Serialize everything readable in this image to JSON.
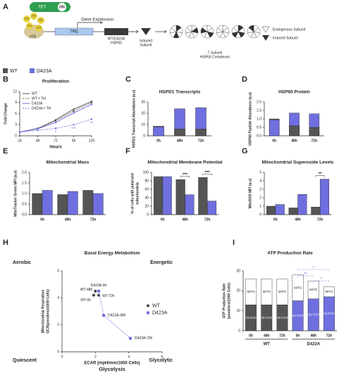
{
  "panel_a": {
    "label": "A",
    "tet": "TET",
    "switch": "ON",
    "rtta": "rtTA",
    "gene_expression": "Gene Expression",
    "tre": "TRE",
    "construct": [
      "WT/D423A",
      "HSP60"
    ],
    "induced": [
      "Induced",
      "Subunit"
    ],
    "complexes": [
      "7 Subunit",
      "HSP60 Complexes"
    ],
    "key": [
      ": Endogenous Subunit",
      ": Induced Subunit"
    ]
  },
  "legend": {
    "names": [
      "WT",
      "D423A"
    ],
    "colors": [
      "#555555",
      "#6f6fe0"
    ]
  },
  "chart_data": [
    {
      "panel": "B",
      "type": "line",
      "title": "Proliferation",
      "x": [
        24,
        48,
        72,
        96,
        120
      ],
      "xlim": [
        24,
        120
      ],
      "xticks": [
        24,
        48,
        72,
        96,
        120
      ],
      "ylim": [
        0,
        12
      ],
      "yticks": [
        0,
        3,
        6,
        9,
        12
      ],
      "xlabel": "Hours",
      "ylabel": "Fold Change",
      "legend": "upper left",
      "series": [
        {
          "name": "WT",
          "color": "#555555",
          "dashed": false,
          "values": [
            1,
            2,
            4.3,
            7.2,
            9.3
          ]
        },
        {
          "name": "WT + Tet",
          "color": "#555555",
          "dashed": true,
          "values": [
            1,
            2,
            4,
            6.7,
            9
          ]
        },
        {
          "name": "D423A",
          "color": "#6f6fe0",
          "dashed": false,
          "values": [
            1,
            1.9,
            3.6,
            6.2,
            8.5
          ]
        },
        {
          "name": "D423A + Tet",
          "color": "#6f6fe0",
          "dashed": true,
          "values": [
            1,
            1.5,
            2,
            3,
            4.5
          ]
        }
      ],
      "annotations": [
        null,
        null,
        "*",
        "***",
        "**"
      ]
    },
    {
      "panel": "C",
      "type": "bar",
      "overlay": true,
      "title": "HSPD1 Transcripts",
      "categories": [
        "0h",
        "48h",
        "72h"
      ],
      "ylim": [
        0,
        30
      ],
      "yticks": [
        0,
        10,
        20,
        30
      ],
      "ylabel": [
        "HSPD1 Transcript Abundance (a.u)"
      ],
      "series": [
        {
          "name": "WT",
          "color": "#555555",
          "values": [
            8.5,
            6,
            6
          ]
        },
        {
          "name": "D423A",
          "color": "#6f6fe0",
          "values": [
            8,
            24,
            25
          ]
        }
      ]
    },
    {
      "panel": "D",
      "type": "bar",
      "overlay": true,
      "title": "HSP60 Protein",
      "categories": [
        "0h",
        "48h",
        "72h"
      ],
      "ylim": [
        0,
        2
      ],
      "yticks": [
        {
          "value": 0,
          "label": "0.0"
        },
        0.5,
        {
          "value": 1,
          "label": "1.0"
        },
        1.5,
        {
          "value": 2,
          "label": "2.0"
        }
      ],
      "ylabel": [
        "HSP60 Peptide Abundance (a.u)"
      ],
      "series": [
        {
          "name": "WT",
          "color": "#555555",
          "values": [
            1.0,
            0.6,
            0.5
          ]
        },
        {
          "name": "D423A",
          "color": "#6f6fe0",
          "values": [
            0.95,
            1.35,
            1.3
          ]
        }
      ]
    },
    {
      "panel": "E",
      "type": "bar",
      "overlay": false,
      "title": "Mitochondrial Mass",
      "categories": [
        "0h",
        "48h",
        "72h"
      ],
      "ylim": [
        0,
        2
      ],
      "yticks": [
        {
          "value": 0,
          "label": "0.0"
        },
        0.5,
        {
          "value": 1,
          "label": "1.0"
        },
        1.5,
        {
          "value": 2,
          "label": "2.0"
        }
      ],
      "ylabel": [
        "MitoTracker Green MFI (a.u)"
      ],
      "series": [
        {
          "name": "WT",
          "color": "#555555",
          "values": [
            1.0,
            0.95,
            1.15
          ]
        },
        {
          "name": "D423A",
          "color": "#6f6fe0",
          "values": [
            1.15,
            1.1,
            1.0
          ]
        }
      ]
    },
    {
      "panel": "F",
      "type": "bar",
      "overlay": false,
      "title": "Mitochondrial Membrane Potential",
      "categories": [
        "0h",
        "48h",
        "72h"
      ],
      "ylim": [
        0,
        100
      ],
      "yticks": [
        0,
        20,
        40,
        60,
        80,
        100
      ],
      "ylabel": [
        "% of cells with polarized",
        "mitochondria"
      ],
      "series": [
        {
          "name": "WT",
          "color": "#555555",
          "values": [
            90,
            83,
            88
          ]
        },
        {
          "name": "D423A",
          "color": "#6f6fe0",
          "values": [
            90,
            47,
            32
          ]
        }
      ],
      "annotations": [
        null,
        "***",
        "***"
      ]
    },
    {
      "panel": "G",
      "type": "bar",
      "overlay": false,
      "title": "Mitochondrial Superoxide Levels",
      "categories": [
        "0h",
        "48h",
        "72h"
      ],
      "ylim": [
        0,
        5
      ],
      "yticks": [
        0,
        1,
        2,
        3,
        4,
        5
      ],
      "ylabel": [
        "MitoSOX MFI (a.u)"
      ],
      "series": [
        {
          "name": "WT",
          "color": "#555555",
          "values": [
            1.0,
            0.8,
            0.9
          ]
        },
        {
          "name": "D423A",
          "color": "#6f6fe0",
          "values": [
            1.2,
            2.4,
            4.2
          ]
        }
      ],
      "annotations": [
        null,
        null,
        "**"
      ]
    },
    {
      "panel": "H",
      "type": "scatter",
      "title": "Basal Energy Metabolism",
      "xlim": [
        0,
        6
      ],
      "xticks": [
        0,
        2,
        4,
        6
      ],
      "ylim": [
        0,
        6
      ],
      "yticks": [
        0,
        2,
        4,
        6
      ],
      "xlabel": [
        "ECAR (mpH/min/1000 Cells)",
        "Glycolysis"
      ],
      "ylabel": [
        "Mitochondrial Respiration",
        "OCR(pmol/min/1000 Cells)"
      ],
      "quadrants": [
        "Aerobic",
        "Energetic",
        "Quiescent",
        "Glycolytic"
      ],
      "legend": "right",
      "series": [
        {
          "name": "WT",
          "color": "#444444",
          "marker": "circle",
          "x": [
            1.9,
            2.0,
            2.2
          ],
          "y": [
            4.2,
            4.5,
            4.2
          ],
          "labels": [
            "WT-0h",
            "WT-48h",
            "WT-72h"
          ]
        },
        {
          "name": "D423A",
          "color": "#6f6fe0",
          "marker": "square",
          "x": [
            2.2,
            2.5,
            4.1
          ],
          "y": [
            4.5,
            2.7,
            1.0
          ],
          "labels": [
            "D423A-0h",
            "D423A-48h",
            "D423A-72h"
          ]
        }
      ]
    },
    {
      "panel": "I",
      "type": "stacked_bar",
      "title": "ATP Production Rate",
      "ylim": [
        0,
        30
      ],
      "yticks": [
        0,
        10,
        20,
        30
      ],
      "ylabel": [
        "ATP Production Rate",
        "(pmol/min/1000 Cells)"
      ],
      "segments": [
        "GLYCO",
        "MITO"
      ],
      "groups": [
        {
          "name": "WT",
          "color": "#555555",
          "categories": [
            "0h",
            "48h",
            "72h"
          ],
          "values": [
            [
              13,
              13,
              13
            ],
            [
              13,
              13,
              13
            ]
          ]
        },
        {
          "name": "D423A",
          "color": "#6f6fe0",
          "categories": [
            "0h",
            "48h",
            "72h"
          ],
          "values": [
            [
              15,
              16,
              17
            ],
            [
              13,
              9,
              5
            ]
          ]
        }
      ],
      "annotations": [
        "*",
        "**",
        "*"
      ]
    }
  ]
}
